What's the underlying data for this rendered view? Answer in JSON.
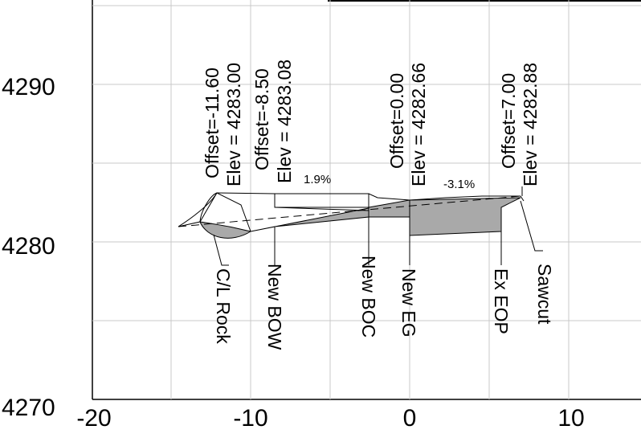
{
  "y_ticks": [
    "4290",
    "4280",
    "4270"
  ],
  "x_ticks": [
    "-20",
    "-10",
    "0",
    "10"
  ],
  "point_labels": [
    {
      "offset": "Offset=-11.60",
      "elev": "Elev = 4283.00"
    },
    {
      "offset": "Offset=-8.50",
      "elev": "Elev = 4283.08"
    },
    {
      "offset": "Offset=0.00",
      "elev": "Elev = 4282.66"
    },
    {
      "offset": "Offset=7.00",
      "elev": "Elev = 4282.88"
    }
  ],
  "slopes": [
    "1.9%",
    "-3.1%"
  ],
  "callouts": [
    "C/L Rock",
    "New BOW",
    "New BOC",
    "New EG",
    "Ex EOP",
    "Sawcut"
  ],
  "colors": {
    "fill": "#a9a9a9",
    "grid": "#c8c8c8",
    "line": "#000000"
  }
}
